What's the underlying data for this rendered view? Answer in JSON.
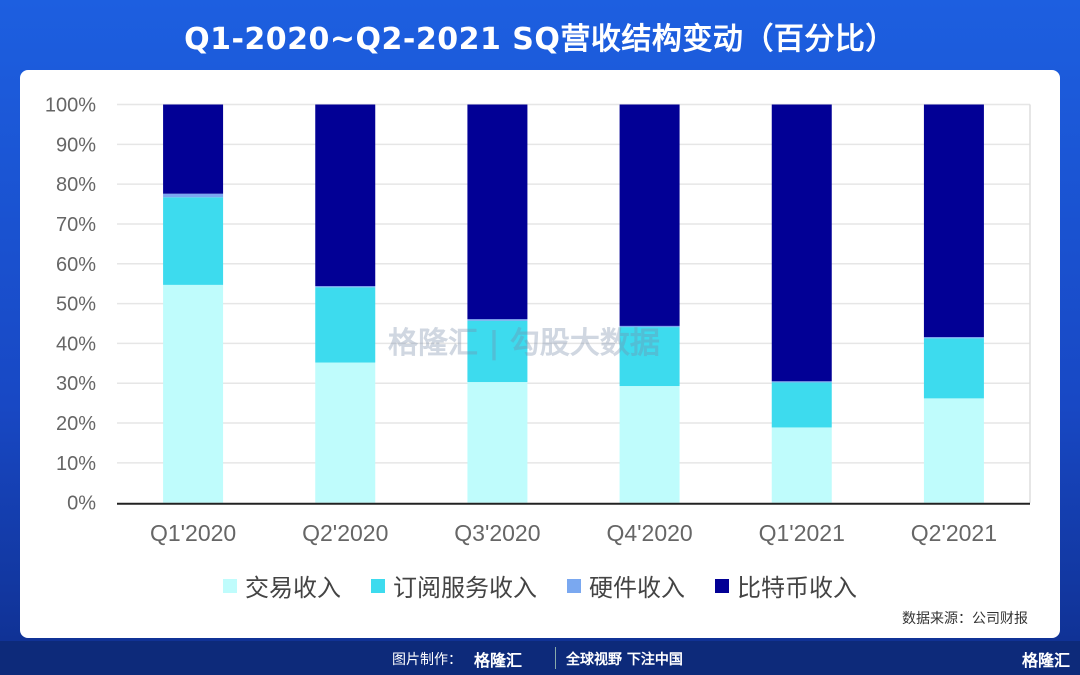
{
  "title": "Q1-2020~Q2-2021 SQ营收结构变动（百分比）",
  "chart_data": {
    "type": "bar",
    "stacked": true,
    "percent": true,
    "categories": [
      "Q1'2020",
      "Q2'2020",
      "Q3'2020",
      "Q4'2020",
      "Q1'2021",
      "Q2'2021"
    ],
    "series": [
      {
        "name": "交易收入",
        "color": "#bffcfc",
        "values": [
          54.7,
          35.2,
          30.3,
          29.3,
          18.9,
          26.2
        ]
      },
      {
        "name": "订阅服务收入",
        "color": "#3ddbee",
        "values": [
          22.0,
          18.9,
          15.4,
          14.8,
          11.3,
          15.1
        ]
      },
      {
        "name": "硬件收入",
        "color": "#7aa8f0",
        "values": [
          0.9,
          0.3,
          0.4,
          0.3,
          0.3,
          0.3
        ]
      },
      {
        "name": "比特币收入",
        "color": "#020095",
        "values": [
          22.4,
          45.6,
          53.9,
          55.6,
          69.5,
          58.4
        ]
      }
    ],
    "ylim": [
      0,
      100
    ],
    "yticks": [
      "0%",
      "10%",
      "20%",
      "30%",
      "40%",
      "50%",
      "60%",
      "70%",
      "80%",
      "90%",
      "100%"
    ],
    "grid": true,
    "legend": "bottom"
  },
  "source": "数据来源：公司财报",
  "watermark": "格隆汇 | 勾股大数据",
  "footer": {
    "maker": "图片制作：",
    "logo": "格隆汇",
    "slogan": "全球视野 下注中国",
    "logo_right": "格隆汇"
  }
}
